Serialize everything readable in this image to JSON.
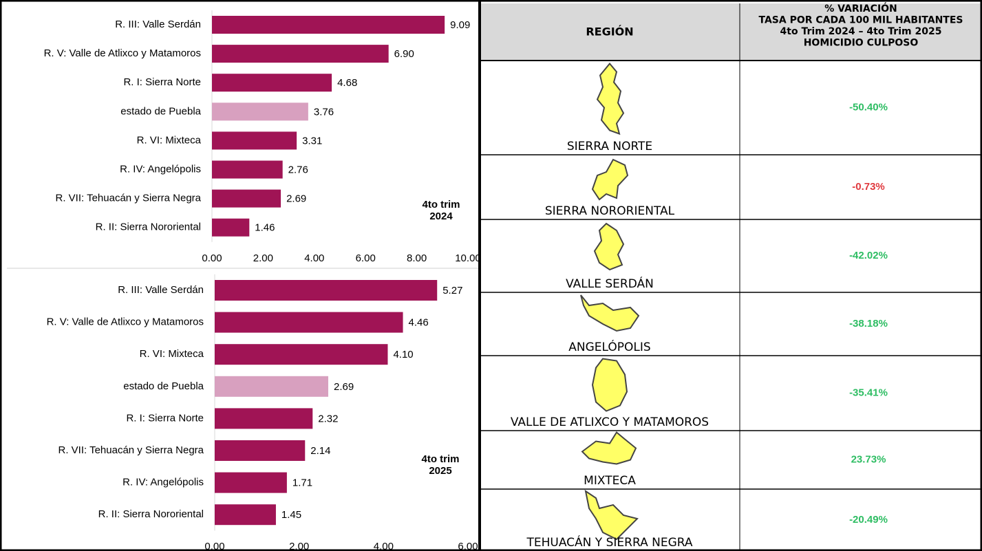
{
  "chart_data": [
    {
      "type": "bar",
      "orientation": "horizontal",
      "categories": [
        "R. III: Valle Serdán",
        "R. V: Valle de Atlixco y Matamoros",
        "R. I: Sierra Norte",
        "estado de Puebla",
        "R. VI:  Mixteca",
        "R. IV: Angelópolis",
        "R. VII: Tehuacán y Sierra Negra",
        "R. II: Sierra Nororiental"
      ],
      "values": [
        9.09,
        6.9,
        4.68,
        3.76,
        3.31,
        2.76,
        2.69,
        1.46
      ],
      "value_labels": [
        "9.09",
        "6.90",
        "4.68",
        "3.76",
        "3.31",
        "2.76",
        "2.69",
        "1.46"
      ],
      "colors": [
        "#a01455",
        "#a01455",
        "#a01455",
        "#d8a0bf",
        "#a01455",
        "#a01455",
        "#a01455",
        "#a01455"
      ],
      "xlim": [
        0,
        10
      ],
      "xticks": [
        {
          "value": 0,
          "label": "0.00"
        },
        {
          "value": 2,
          "label": "2.00"
        },
        {
          "value": 4,
          "label": "4.00"
        },
        {
          "value": 6,
          "label": "6.00"
        },
        {
          "value": 8,
          "label": "8.00"
        },
        {
          "value": 10,
          "label": "10.00"
        }
      ],
      "annotation": [
        "4to trim",
        "2024"
      ]
    },
    {
      "type": "bar",
      "orientation": "horizontal",
      "categories": [
        "R. III: Valle Serdán",
        "R. V: Valle de Atlixco y Matamoros",
        "R. VI:  Mixteca",
        "estado de Puebla",
        "R. I: Sierra Norte",
        "R. VII: Tehuacán y Sierra Negra",
        "R. IV: Angelópolis",
        "R. II: Sierra Nororiental"
      ],
      "values": [
        5.27,
        4.46,
        4.1,
        2.69,
        2.32,
        2.14,
        1.71,
        1.45
      ],
      "value_labels": [
        "5.27",
        "4.46",
        "4.10",
        "2.69",
        "2.32",
        "2.14",
        "1.71",
        "1.45"
      ],
      "colors": [
        "#a01455",
        "#a01455",
        "#a01455",
        "#d8a0bf",
        "#a01455",
        "#a01455",
        "#a01455",
        "#a01455"
      ],
      "xlim": [
        0,
        6
      ],
      "xticks": [
        {
          "value": 0,
          "label": "0.00"
        },
        {
          "value": 2,
          "label": "2.00"
        },
        {
          "value": 4,
          "label": "4.00"
        },
        {
          "value": 6,
          "label": "6.00"
        }
      ],
      "annotation": [
        "4to trim",
        "2025"
      ]
    }
  ],
  "table": {
    "header": [
      "REGIÓN",
      [
        "% VARIACIÓN",
        "TASA POR CADA 100 MIL HABITANTES",
        "4to Trim 2024 – 4to Trim 2025",
        "HOMICIDIO CULPOSO"
      ]
    ],
    "rows": [
      {
        "region": "SIERRA NORTE",
        "value": "-50.40%",
        "color": "#2ebd63"
      },
      {
        "region": "SIERRA NORORIENTAL",
        "value": "-0.73%",
        "color": "#e0393e"
      },
      {
        "region": "VALLE SERDÁN",
        "value": "-42.02%",
        "color": "#2ebd63"
      },
      {
        "region": "ANGELÓPOLIS",
        "value": "-38.18%",
        "color": "#2ebd63"
      },
      {
        "region": "VALLE DE ATLIXCO Y MATAMOROS",
        "value": "-35.41%",
        "color": "#2ebd63"
      },
      {
        "region": "MIXTECA",
        "value": "23.73%",
        "color": "#2ebd63"
      },
      {
        "region": "TEHUACÁN Y SIERRA NEGRA",
        "value": "-20.49%",
        "color": "#2ebd63"
      }
    ]
  }
}
